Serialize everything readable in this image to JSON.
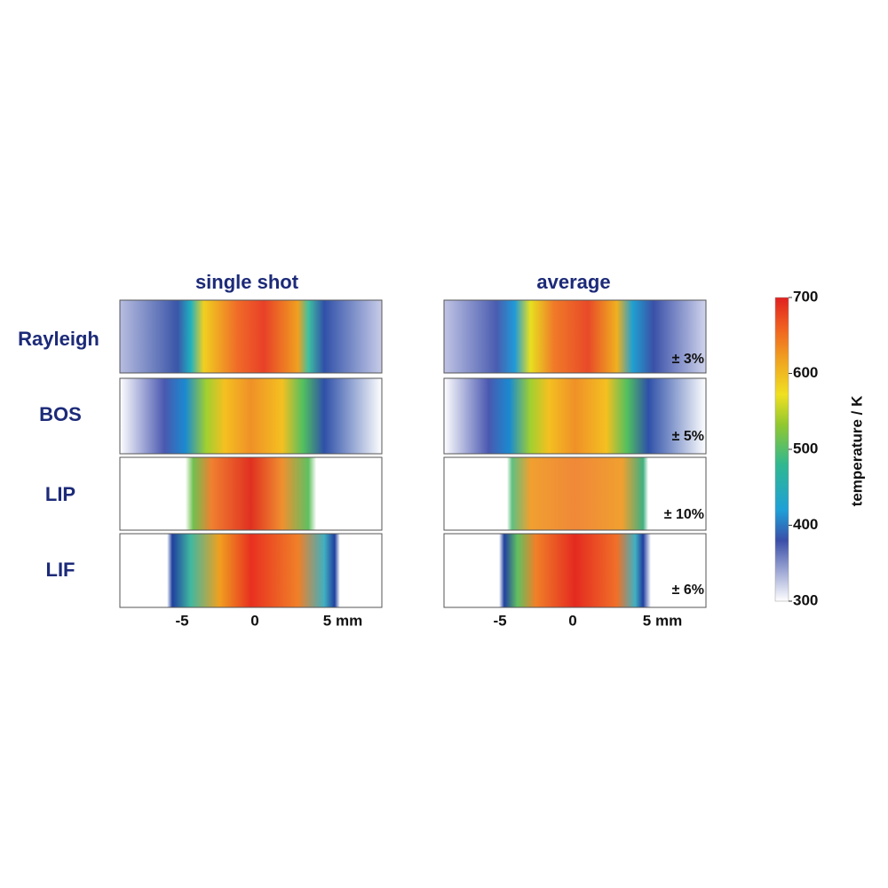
{
  "columns": [
    {
      "title": "single shot",
      "x_ticks": [
        "-5",
        "0",
        "5 mm"
      ]
    },
    {
      "title": "average",
      "x_ticks": [
        "-5",
        "0",
        "5 mm"
      ],
      "uncertainties": [
        "± 3%",
        "± 5%",
        "± 10%",
        "± 6%"
      ]
    }
  ],
  "rows": [
    "Rayleigh",
    "BOS",
    "LIP",
    "LIF"
  ],
  "colorbar": {
    "label": "temperature / K",
    "range": [
      300,
      700
    ],
    "ticks": [
      300,
      400,
      500,
      600,
      700
    ]
  }
}
